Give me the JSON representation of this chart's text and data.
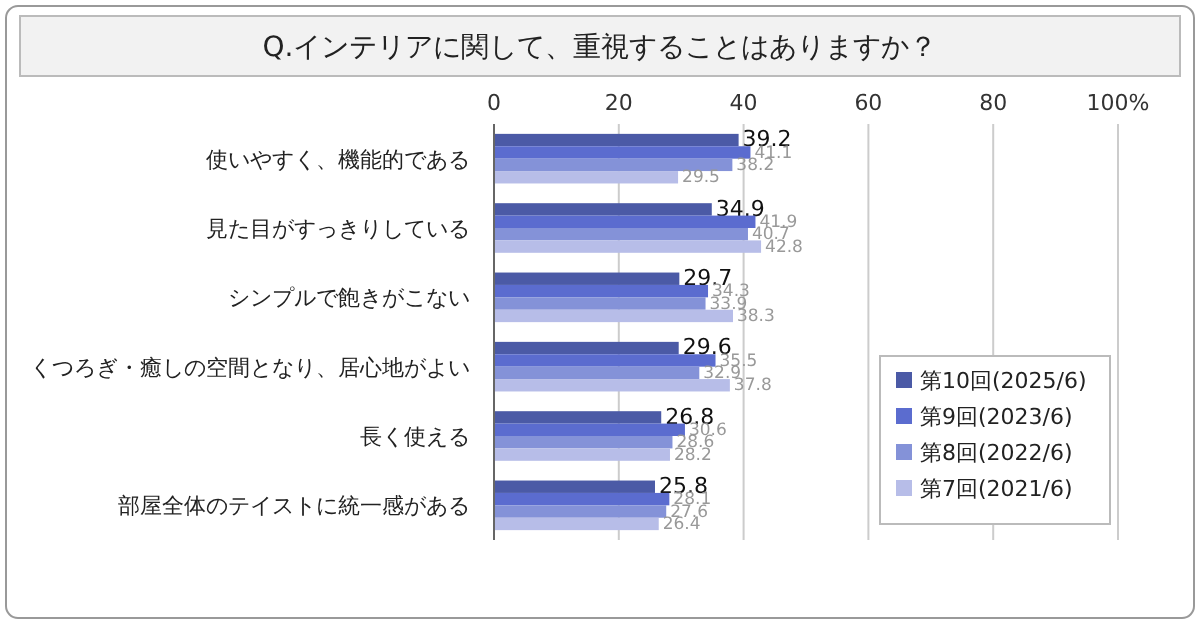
{
  "chart_data": {
    "type": "bar",
    "orientation": "horizontal",
    "title": "Q.インテリアに関して、重視することはありますか？",
    "categories": [
      "使いやすく、機能的である",
      "見た目がすっきりしている",
      "シンプルで飽きがこない",
      "くつろぎ・癒しの空間となり、居心地がよい",
      "長く使える",
      "部屋全体のテイストに統一感がある"
    ],
    "series": [
      {
        "name": "第10回(2025/6)",
        "color": "#4b5aa6",
        "values": [
          39.2,
          34.9,
          29.7,
          29.6,
          26.8,
          25.8
        ]
      },
      {
        "name": "第9回(2023/6)",
        "color": "#5b6ccf",
        "values": [
          41.1,
          41.9,
          34.3,
          35.5,
          30.6,
          28.1
        ]
      },
      {
        "name": "第8回(2022/6)",
        "color": "#8492d8",
        "values": [
          38.2,
          40.7,
          33.9,
          32.9,
          28.6,
          27.6
        ]
      },
      {
        "name": "第7回(2021/6)",
        "color": "#b7bde8",
        "values": [
          29.5,
          42.8,
          38.3,
          37.8,
          28.2,
          26.4
        ]
      }
    ],
    "xlim": [
      0,
      100
    ],
    "xticks": [
      0,
      20,
      40,
      60,
      80,
      {
        "value": 100,
        "label": "100%"
      }
    ],
    "grid": "x",
    "legend": "bottom right",
    "data_labels": true
  }
}
